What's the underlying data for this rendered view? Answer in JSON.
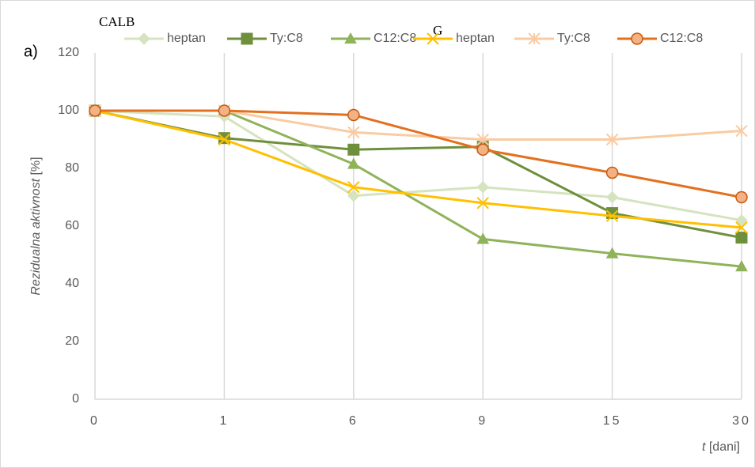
{
  "chart_data": {
    "type": "line",
    "panel_label": "a)",
    "ylabel": {
      "italic": "Rezidualna aktivnost",
      "unit": "[%]"
    },
    "xlabel": {
      "italic": "t",
      "unit": "[dani]"
    },
    "categories": [
      "0",
      "1",
      "6",
      "9",
      "15",
      "30"
    ],
    "ylim": [
      0,
      120
    ],
    "yticks": [
      0,
      20,
      40,
      60,
      80,
      100,
      120
    ],
    "grid": true,
    "series": [
      {
        "name": "heptan",
        "group": "CALB",
        "color": "#d5e3bf",
        "marker": "diamond",
        "values": [
          100,
          98,
          70.5,
          73.5,
          70,
          62
        ]
      },
      {
        "name": "Ty:C8",
        "group": "CALB",
        "color": "#6e8f3c",
        "marker": "square",
        "values": [
          100,
          90.5,
          86.5,
          87.5,
          64.5,
          56
        ]
      },
      {
        "name": "C12:C8",
        "group": "CALB",
        "color": "#8fb35a",
        "marker": "triangle",
        "values": [
          100,
          100,
          81.5,
          55.5,
          50.5,
          46
        ]
      },
      {
        "name": "heptan",
        "group": "G",
        "color": "#ffc000",
        "marker": "x",
        "values": [
          100,
          90,
          73.5,
          68,
          63.5,
          59.5
        ]
      },
      {
        "name": "Ty:C8",
        "group": "G",
        "color": "#f8cba3",
        "marker": "star",
        "values": [
          100,
          100,
          92.5,
          90,
          90,
          93
        ]
      },
      {
        "name": "C12:C8",
        "group": "G",
        "color": "#e3701f",
        "marker": "circle",
        "values": [
          100,
          100,
          98.5,
          86.5,
          78.5,
          70
        ]
      }
    ]
  }
}
